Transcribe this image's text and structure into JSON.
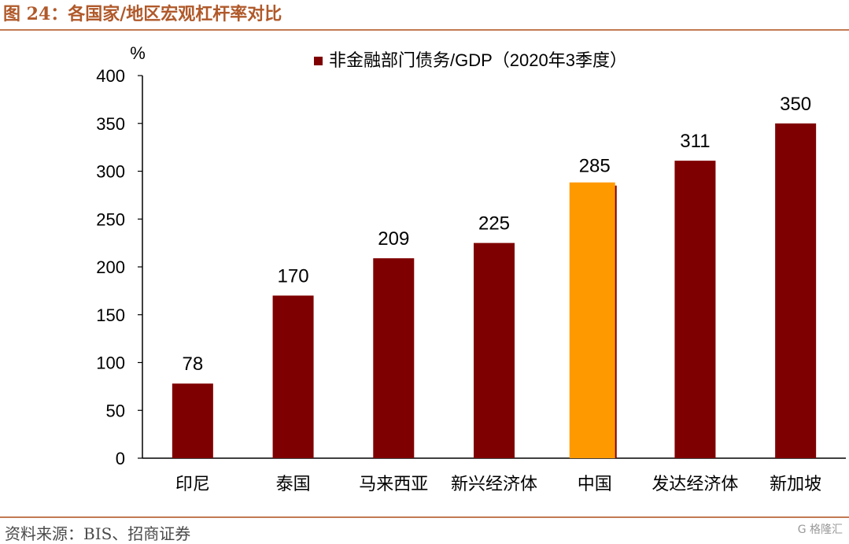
{
  "header": {
    "title": "图 24：各国家/地区宏观杠杆率对比"
  },
  "footer": {
    "source": "资料来源：BIS、招商证券",
    "watermark": "G 格隆汇"
  },
  "colors": {
    "bar": "#7f0000",
    "highlight": "#ff9900",
    "accent_rule": "#c27a52"
  },
  "chart_data": {
    "type": "bar",
    "title": "",
    "unit_label": "%",
    "categories": [
      "印尼",
      "泰国",
      "马来西亚",
      "新兴经济体",
      "中国",
      "发达经济体",
      "新加坡"
    ],
    "series": [
      {
        "name": "非金融部门债务/GDP（2020年3季度）",
        "values": [
          78,
          170,
          209,
          225,
          285,
          311,
          350
        ]
      }
    ],
    "highlight_category": "中国",
    "data_labels": [
      "78",
      "170",
      "209",
      "225",
      "285",
      "311",
      "350"
    ],
    "y_ticks": [
      "0",
      "50",
      "100",
      "150",
      "200",
      "250",
      "300",
      "350",
      "400"
    ],
    "ylim": [
      0,
      400
    ],
    "grid": false,
    "legend": "top-center"
  }
}
